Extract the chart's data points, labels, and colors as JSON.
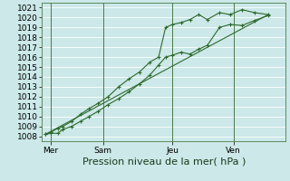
{
  "background_color": "#cce8e8",
  "plot_bg": "#cce8e8",
  "grid_color": "#ffffff",
  "line_color": "#2d6a2d",
  "ylabel": "Pression niveau de la mer( hPa )",
  "ylim": [
    1007.5,
    1021.5
  ],
  "yticks": [
    1008,
    1009,
    1010,
    1011,
    1012,
    1013,
    1014,
    1015,
    1016,
    1017,
    1018,
    1019,
    1020,
    1021
  ],
  "xtick_labels": [
    "Mer",
    "Sam",
    "Jeu",
    "Ven"
  ],
  "xtick_positions": [
    0.5,
    3.5,
    7.5,
    11.0
  ],
  "xlim": [
    0,
    14.0
  ],
  "line1_x": [
    0.2,
    0.5,
    0.9,
    1.2,
    1.7,
    2.2,
    2.7,
    3.2,
    3.8,
    4.4,
    5.0,
    5.6,
    6.2,
    6.7,
    7.1,
    7.5,
    8.0,
    8.5,
    9.0,
    9.5,
    10.2,
    10.8,
    11.5,
    12.2,
    13.0
  ],
  "line1_y": [
    1008.2,
    1008.3,
    1008.3,
    1008.7,
    1009.0,
    1009.5,
    1010.0,
    1010.5,
    1011.2,
    1011.8,
    1012.5,
    1013.3,
    1014.2,
    1015.2,
    1016.0,
    1016.2,
    1016.5,
    1016.3,
    1016.8,
    1017.2,
    1019.0,
    1019.3,
    1019.2,
    1019.7,
    1020.2
  ],
  "line2_x": [
    0.2,
    0.5,
    0.9,
    1.2,
    1.7,
    2.2,
    2.7,
    3.2,
    3.8,
    4.4,
    5.0,
    5.6,
    6.2,
    6.7,
    7.1,
    7.5,
    8.0,
    8.5,
    9.0,
    9.5,
    10.2,
    10.8,
    11.5,
    12.2,
    13.0
  ],
  "line2_y": [
    1008.2,
    1008.4,
    1008.8,
    1009.0,
    1009.5,
    1010.2,
    1010.8,
    1011.3,
    1012.0,
    1013.0,
    1013.8,
    1014.5,
    1015.5,
    1016.0,
    1019.0,
    1019.3,
    1019.5,
    1019.8,
    1020.3,
    1019.8,
    1020.5,
    1020.3,
    1020.8,
    1020.5,
    1020.3
  ],
  "line3_x": [
    0.2,
    13.0
  ],
  "line3_y": [
    1008.2,
    1020.3
  ],
  "vline_positions": [
    0.5,
    3.5,
    7.5,
    11.0
  ],
  "font_size_ylabel": 8,
  "font_size_ticks": 6.5
}
